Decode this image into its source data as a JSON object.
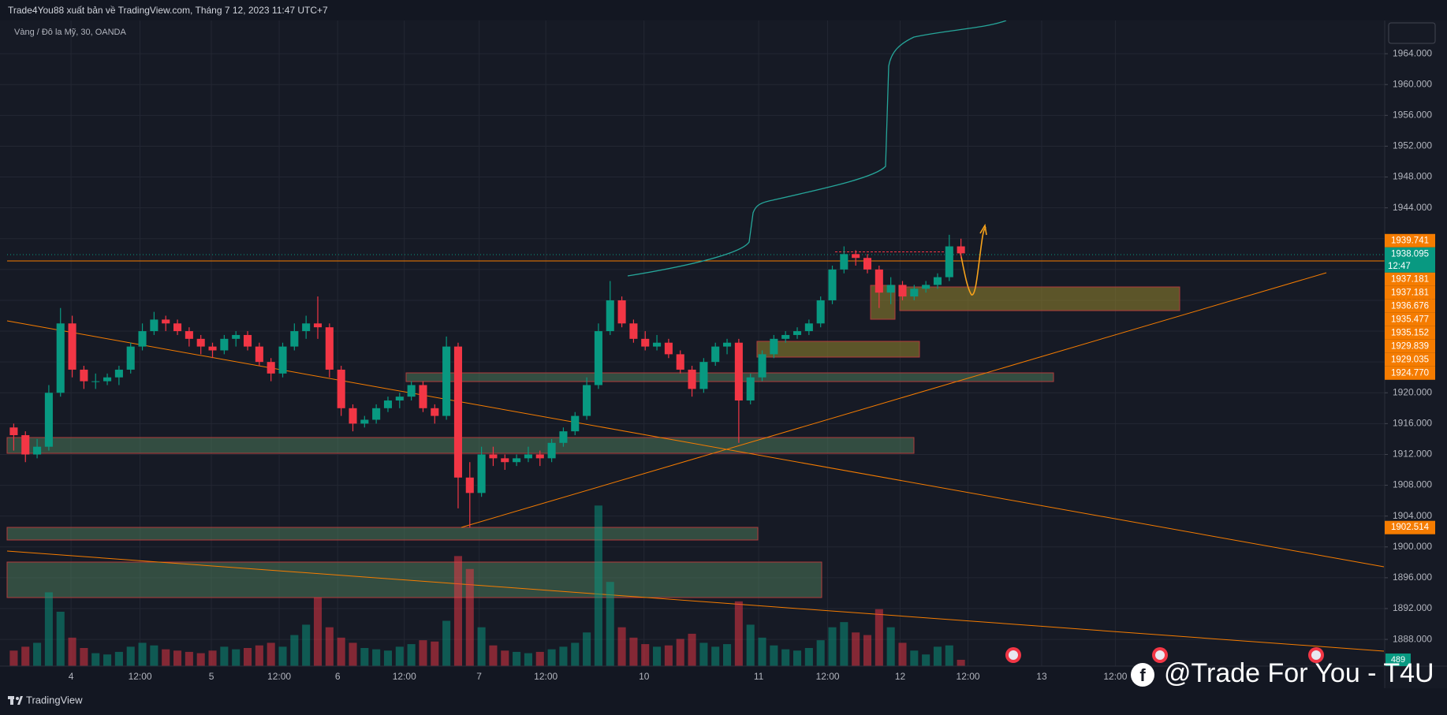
{
  "chart_data": {
    "type": "candlestick",
    "title": "Trade4You88 xuất bản về TradingView.com, Tháng 7 12, 2023 11:47 UTC+7",
    "subtitle": "Vàng / Đô la Mỹ, 30, OANDA",
    "brand": "TradingView",
    "watermark": "@Trade For You - T4U",
    "up_color": "#089981",
    "down_color": "#f23645",
    "grid": true,
    "ylim": [
      1884.53,
      1968.31
    ],
    "yticks": [
      {
        "value": 1888,
        "label": "1888.000"
      },
      {
        "value": 1892,
        "label": "1892.000"
      },
      {
        "value": 1896,
        "label": "1896.000"
      },
      {
        "value": 1900,
        "label": "1900.000"
      },
      {
        "value": 1904,
        "label": "1904.000"
      },
      {
        "value": 1908,
        "label": "1908.000"
      },
      {
        "value": 1912,
        "label": "1912.000"
      },
      {
        "value": 1916,
        "label": "1916.000"
      },
      {
        "value": 1920,
        "label": "1920.000"
      },
      {
        "value": 1924,
        "label": "1924.000"
      },
      {
        "value": 1928,
        "label": "1928.000"
      },
      {
        "value": 1932,
        "label": "1932.000"
      },
      {
        "value": 1936,
        "label": "1936.000"
      },
      {
        "value": 1940,
        "label": "1940.000"
      },
      {
        "value": 1944,
        "label": "1944.000"
      },
      {
        "value": 1948,
        "label": "1948.000"
      },
      {
        "value": 1952,
        "label": "1952.000"
      },
      {
        "value": 1956,
        "label": "1956.000"
      },
      {
        "value": 1960,
        "label": "1960.000"
      },
      {
        "value": 1964,
        "label": "1964.000"
      }
    ],
    "xticks": [
      {
        "value": 5.4,
        "label": "4"
      },
      {
        "value": 11.3,
        "label": "12:00"
      },
      {
        "value": 17.4,
        "label": "5"
      },
      {
        "value": 23.2,
        "label": "12:00"
      },
      {
        "value": 28.2,
        "label": "6"
      },
      {
        "value": 33.9,
        "label": "12:00"
      },
      {
        "value": 40.3,
        "label": "7"
      },
      {
        "value": 46.0,
        "label": "12:00"
      },
      {
        "value": 54.4,
        "label": "10"
      },
      {
        "value": 64.2,
        "label": "11"
      },
      {
        "value": 70.1,
        "label": "12:00"
      },
      {
        "value": 76.3,
        "label": "12"
      },
      {
        "value": 82.1,
        "label": "12:00"
      },
      {
        "value": 88.4,
        "label": "13"
      },
      {
        "value": 94.7,
        "label": "12:00"
      }
    ],
    "candles": [
      [
        1915.5,
        1916,
        1912.5,
        1914.5
      ],
      [
        1914.5,
        1915,
        1911,
        1912
      ],
      [
        1912,
        1914,
        1911.5,
        1913
      ],
      [
        1913,
        1921,
        1912.5,
        1920
      ],
      [
        1920,
        1931,
        1919.5,
        1929
      ],
      [
        1929,
        1930,
        1922,
        1923
      ],
      [
        1923,
        1923.5,
        1920.5,
        1921.5
      ],
      [
        1921.5,
        1922.5,
        1920.5,
        1921.5
      ],
      [
        1921.5,
        1922.5,
        1921,
        1922
      ],
      [
        1922,
        1923.5,
        1921,
        1923
      ],
      [
        1923,
        1926.5,
        1922.5,
        1926
      ],
      [
        1926,
        1929,
        1925.5,
        1928
      ],
      [
        1928,
        1930.5,
        1927.5,
        1929.5
      ],
      [
        1929.5,
        1930,
        1928,
        1929
      ],
      [
        1929,
        1929.5,
        1927.5,
        1928
      ],
      [
        1928,
        1928.5,
        1926,
        1927
      ],
      [
        1927,
        1927.5,
        1925,
        1926
      ],
      [
        1926,
        1926.5,
        1924.5,
        1925.5
      ],
      [
        1925.5,
        1927.5,
        1925,
        1927
      ],
      [
        1927,
        1928,
        1926,
        1927.5
      ],
      [
        1927.5,
        1928,
        1925.5,
        1926
      ],
      [
        1926,
        1926.5,
        1923.5,
        1924
      ],
      [
        1924,
        1924.5,
        1921.5,
        1922.5
      ],
      [
        1922.5,
        1926.5,
        1922,
        1926
      ],
      [
        1926,
        1929,
        1925.5,
        1928
      ],
      [
        1928,
        1930,
        1927,
        1929
      ],
      [
        1929,
        1932.5,
        1927,
        1928.5
      ],
      [
        1928.5,
        1929,
        1922,
        1923
      ],
      [
        1923,
        1923.5,
        1917,
        1918
      ],
      [
        1918,
        1918.5,
        1915,
        1916
      ],
      [
        1916,
        1917,
        1915.5,
        1916.5
      ],
      [
        1916.5,
        1918.5,
        1916,
        1918
      ],
      [
        1918,
        1919.5,
        1917.5,
        1919
      ],
      [
        1919,
        1920,
        1918,
        1919.5
      ],
      [
        1919.5,
        1921.5,
        1919,
        1921
      ],
      [
        1921,
        1921.5,
        1917.5,
        1918
      ],
      [
        1918,
        1918.5,
        1916,
        1917
      ],
      [
        1917,
        1927.3,
        1916.5,
        1926
      ],
      [
        1926,
        1926.5,
        1905,
        1909
      ],
      [
        1909,
        1911,
        1902.5,
        1907
      ],
      [
        1907,
        1913,
        1906.5,
        1912
      ],
      [
        1912,
        1913,
        1910.5,
        1911.5
      ],
      [
        1911.5,
        1912,
        1910,
        1911
      ],
      [
        1911,
        1912,
        1910.5,
        1911.5
      ],
      [
        1911.5,
        1913,
        1911,
        1912
      ],
      [
        1912,
        1912.5,
        1910.5,
        1911.5
      ],
      [
        1911.5,
        1914,
        1911,
        1913.5
      ],
      [
        1913.5,
        1915.5,
        1913,
        1915
      ],
      [
        1915,
        1917.5,
        1914.5,
        1917
      ],
      [
        1917,
        1922,
        1916.5,
        1921
      ],
      [
        1921,
        1929,
        1920.5,
        1928
      ],
      [
        1928,
        1934.5,
        1927.5,
        1932
      ],
      [
        1932,
        1932.5,
        1928.5,
        1929
      ],
      [
        1929,
        1929.5,
        1926.5,
        1927
      ],
      [
        1927,
        1928,
        1925.5,
        1926
      ],
      [
        1926,
        1927.5,
        1925.5,
        1926.5
      ],
      [
        1926.5,
        1927,
        1924.5,
        1925
      ],
      [
        1925,
        1925.5,
        1922.5,
        1923
      ],
      [
        1923,
        1923.5,
        1919.5,
        1920.5
      ],
      [
        1920.5,
        1924.5,
        1920,
        1924
      ],
      [
        1924,
        1926.5,
        1923.5,
        1926
      ],
      [
        1926,
        1927,
        1925,
        1926.5
      ],
      [
        1926.5,
        1927,
        1913.5,
        1919
      ],
      [
        1919,
        1922.5,
        1918.5,
        1922
      ],
      [
        1922,
        1925.5,
        1921.5,
        1925
      ],
      [
        1925,
        1927.5,
        1924.5,
        1927
      ],
      [
        1927,
        1928,
        1926.5,
        1927.5
      ],
      [
        1927.5,
        1928.5,
        1927,
        1928
      ],
      [
        1928,
        1929.5,
        1927.5,
        1929
      ],
      [
        1929,
        1932.5,
        1928.5,
        1932
      ],
      [
        1932,
        1936.5,
        1931.5,
        1936
      ],
      [
        1936,
        1939,
        1935.5,
        1938
      ],
      [
        1938,
        1938.5,
        1936.5,
        1937.5
      ],
      [
        1937.5,
        1938,
        1935.5,
        1936
      ],
      [
        1936,
        1936.5,
        1931,
        1933
      ],
      [
        1933,
        1935,
        1931.5,
        1934
      ],
      [
        1934,
        1934.5,
        1932,
        1932.5
      ],
      [
        1932.5,
        1934,
        1932,
        1933.5
      ],
      [
        1933.5,
        1934.5,
        1933,
        1934
      ],
      [
        1934,
        1935.5,
        1933.5,
        1935
      ],
      [
        1935,
        1940.5,
        1934.5,
        1939
      ],
      [
        1939,
        1940,
        1937.5,
        1938.095
      ]
    ],
    "volume": [
      1200,
      1500,
      1800,
      5700,
      4200,
      2200,
      1400,
      1000,
      900,
      1100,
      1500,
      1800,
      1600,
      1300,
      1200,
      1100,
      1000,
      1200,
      1500,
      1300,
      1400,
      1600,
      1800,
      1500,
      2400,
      3200,
      5300,
      3000,
      2200,
      1800,
      1400,
      1300,
      1200,
      1500,
      1700,
      2000,
      1900,
      3500,
      8500,
      7500,
      3000,
      1600,
      1200,
      1100,
      1000,
      1100,
      1300,
      1500,
      1800,
      2600,
      12400,
      6500,
      3000,
      2200,
      1700,
      1500,
      1600,
      2100,
      2500,
      1800,
      1500,
      1700,
      5000,
      3200,
      2200,
      1600,
      1300,
      1200,
      1400,
      2000,
      3000,
      3400,
      2600,
      2400,
      4400,
      3000,
      1800,
      1200,
      900,
      1500,
      1600,
      489
    ],
    "volume_lim": [
      0,
      14000
    ],
    "price_labels": [
      {
        "value": 1939.741,
        "color": "#f57c00"
      },
      {
        "value": 1938.095,
        "color": "#089981",
        "countdown": "12:47"
      },
      {
        "value": 1937.181,
        "color": "#f57c00"
      },
      {
        "value": 1937.181,
        "color": "#f57c00"
      },
      {
        "value": 1936.676,
        "color": "#f57c00"
      },
      {
        "value": 1935.477,
        "color": "#f57c00"
      },
      {
        "value": 1935.152,
        "color": "#f57c00"
      },
      {
        "value": 1929.839,
        "color": "#f57c00"
      },
      {
        "value": 1929.035,
        "color": "#f57c00"
      },
      {
        "value": 1924.77,
        "label": "1924.770",
        "color": "#f57c00"
      },
      {
        "value": 1902.514,
        "color": "#f57c00"
      }
    ]
  }
}
